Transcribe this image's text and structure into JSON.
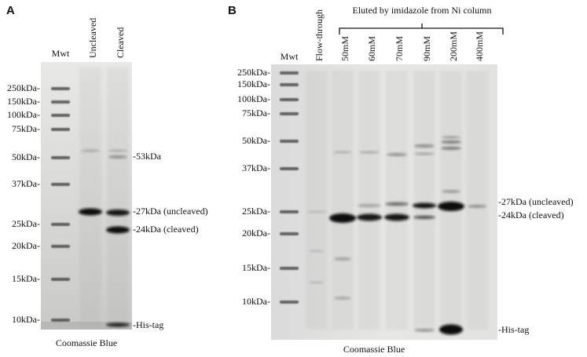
{
  "panels": [
    {
      "label": "A",
      "lanes": [
        "Mwt",
        "Uncleaved",
        "Cleaved"
      ],
      "markers": [
        "250kDa-",
        "150kDa-",
        "100kDa-",
        "75kDa-",
        "50kDa-",
        "37kDa-",
        "25kDa-",
        "20kDa-",
        "15kDa-",
        "10kDa-"
      ],
      "annotations": [
        "-53kDa",
        "-27kDa (uncleaved)",
        "-24kDa (cleaved)",
        "-His-tag"
      ],
      "caption": "Coomassie Blue"
    },
    {
      "label": "B",
      "header": "Eluted by imidazole from Ni column",
      "lanes": [
        "Mwt",
        "Flow-through",
        "50mM",
        "60mM",
        "70mM",
        "90mM",
        "200mM",
        "400mM"
      ],
      "markers": [
        "250kDa-",
        "150kDa-",
        "100kDa-",
        "75kDa-",
        "50kDa-",
        "37kDa-",
        "25kDa-",
        "20kDa-",
        "15kDa-",
        "10kDa-"
      ],
      "annotations": [
        "-27kDa (uncleaved)",
        "-24kDa (cleaved)",
        "-His-tag"
      ],
      "caption": "Coomassie Blue"
    }
  ]
}
